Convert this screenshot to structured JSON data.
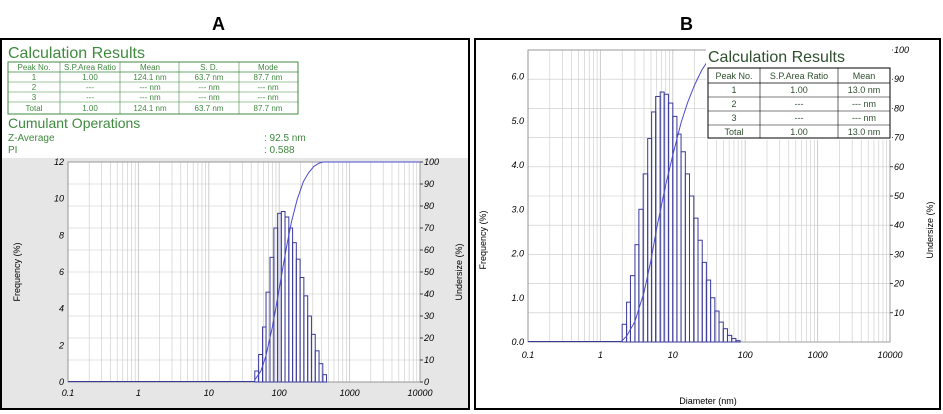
{
  "panel_labels": {
    "a": "A",
    "b": "B"
  },
  "colors": {
    "green_text": "#3f8a3f",
    "bars": "#3a3a9a",
    "curve": "#4b4bd0",
    "grid": "#c8c8c8",
    "axis_strip": "#dcdcdc"
  },
  "panel_a": {
    "calc_title": "Calculation Results",
    "table_headers": [
      "Peak No.",
      "S.P.Area Ratio",
      "Mean",
      "S. D.",
      "Mode"
    ],
    "table_rows": [
      [
        "1",
        "1.00",
        "124.1 nm",
        "63.7 nm",
        "87.7 nm"
      ],
      [
        "2",
        "---",
        "--- nm",
        "--- nm",
        "--- nm"
      ],
      [
        "3",
        "---",
        "--- nm",
        "--- nm",
        "--- nm"
      ],
      [
        "Total",
        "1.00",
        "124.1 nm",
        "63.7 nm",
        "87.7 nm"
      ]
    ],
    "cumulant_title": "Cumulant Operations",
    "z_average_label": "Z-Average",
    "z_average_value": ": 92.5 nm",
    "pi_label": "PI",
    "pi_value": ": 0.588"
  },
  "panel_b": {
    "calc_title": "Calculation Results",
    "table_headers": [
      "Peak No.",
      "S.P.Area Ratio",
      "Mean"
    ],
    "table_rows": [
      [
        "1",
        "1.00",
        "13.0 nm"
      ],
      [
        "2",
        "---",
        "--- nm"
      ],
      [
        "3",
        "---",
        "--- nm"
      ],
      [
        "Total",
        "1.00",
        "13.0 nm"
      ]
    ]
  },
  "chart_data": [
    {
      "type": "bar",
      "panel": "A",
      "xlabel": "",
      "ylabel": "Frequency (%)",
      "y2label": "Undersize (%)",
      "x_scale": "log",
      "xlim": [
        0.1,
        10000
      ],
      "ylim": [
        0,
        12
      ],
      "y2lim": [
        0,
        100
      ],
      "x_ticks": [
        "0.1",
        "1",
        "10",
        "100",
        "1000",
        "10000"
      ],
      "y_ticks": [
        "0",
        "2",
        "4",
        "6",
        "8",
        "10",
        "12"
      ],
      "y2_ticks": [
        "0",
        "10",
        "20",
        "30",
        "40",
        "50",
        "60",
        "70",
        "80",
        "90",
        "100"
      ],
      "grid": true,
      "bins_nm": [
        45,
        51,
        58,
        65,
        74,
        84,
        95,
        107,
        121,
        137,
        155,
        175,
        198,
        224,
        254,
        287,
        325,
        368,
        416
      ],
      "frequency": [
        0.6,
        1.5,
        3.0,
        4.9,
        6.8,
        8.4,
        9.2,
        9.3,
        9.0,
        8.4,
        7.6,
        6.7,
        5.7,
        4.7,
        3.6,
        2.6,
        1.7,
        1.0,
        0.4
      ],
      "undersize_curve": {
        "x": [
          45,
          55,
          65,
          80,
          95,
          110,
          130,
          150,
          180,
          220,
          260,
          310,
          370,
          420
        ],
        "y": [
          1,
          5,
          12,
          25,
          38,
          50,
          63,
          73,
          83,
          91,
          95,
          98,
          99.5,
          100
        ]
      }
    },
    {
      "type": "bar",
      "panel": "B",
      "xlabel": "Diameter (nm)",
      "ylabel": "Frequency (%)",
      "y2label": "Undersize (%)",
      "x_scale": "log",
      "xlim": [
        0.1,
        10000
      ],
      "ylim": [
        0,
        6.6
      ],
      "y2lim": [
        0,
        100
      ],
      "x_ticks": [
        "0.1",
        "1",
        "10",
        "100",
        "1000",
        "10000"
      ],
      "y_ticks": [
        "0.0",
        "1.0",
        "2.0",
        "3.0",
        "4.0",
        "5.0",
        "6.0"
      ],
      "y2_ticks": [
        "10",
        "20",
        "30",
        "40",
        "50",
        "60",
        "70",
        "80",
        "90",
        "100"
      ],
      "grid": true,
      "bins_nm": [
        2.0,
        2.3,
        2.6,
        3.0,
        3.4,
        3.9,
        4.5,
        5.1,
        5.8,
        6.7,
        7.6,
        8.7,
        10.0,
        11.4,
        13.0,
        14.9,
        17.0,
        19.5,
        22.3,
        25.5,
        29.1,
        33.3,
        38.1,
        43.5,
        49.8,
        56.9,
        65.1,
        74.4
      ],
      "frequency": [
        0.4,
        0.9,
        1.5,
        2.2,
        3.0,
        3.8,
        4.6,
        5.2,
        5.55,
        5.65,
        5.6,
        5.4,
        5.1,
        4.7,
        4.3,
        3.8,
        3.3,
        2.8,
        2.3,
        1.8,
        1.4,
        1.0,
        0.7,
        0.45,
        0.3,
        0.15,
        0.08,
        0.03
      ],
      "undersize_curve": {
        "x": [
          1.9,
          2.3,
          3,
          4,
          5,
          6,
          8,
          10,
          13,
          16,
          20,
          25,
          30,
          40,
          50
        ],
        "y": [
          0,
          2,
          7,
          17,
          28,
          39,
          54,
          64,
          75,
          82,
          88,
          93,
          96,
          99,
          100
        ]
      }
    }
  ]
}
